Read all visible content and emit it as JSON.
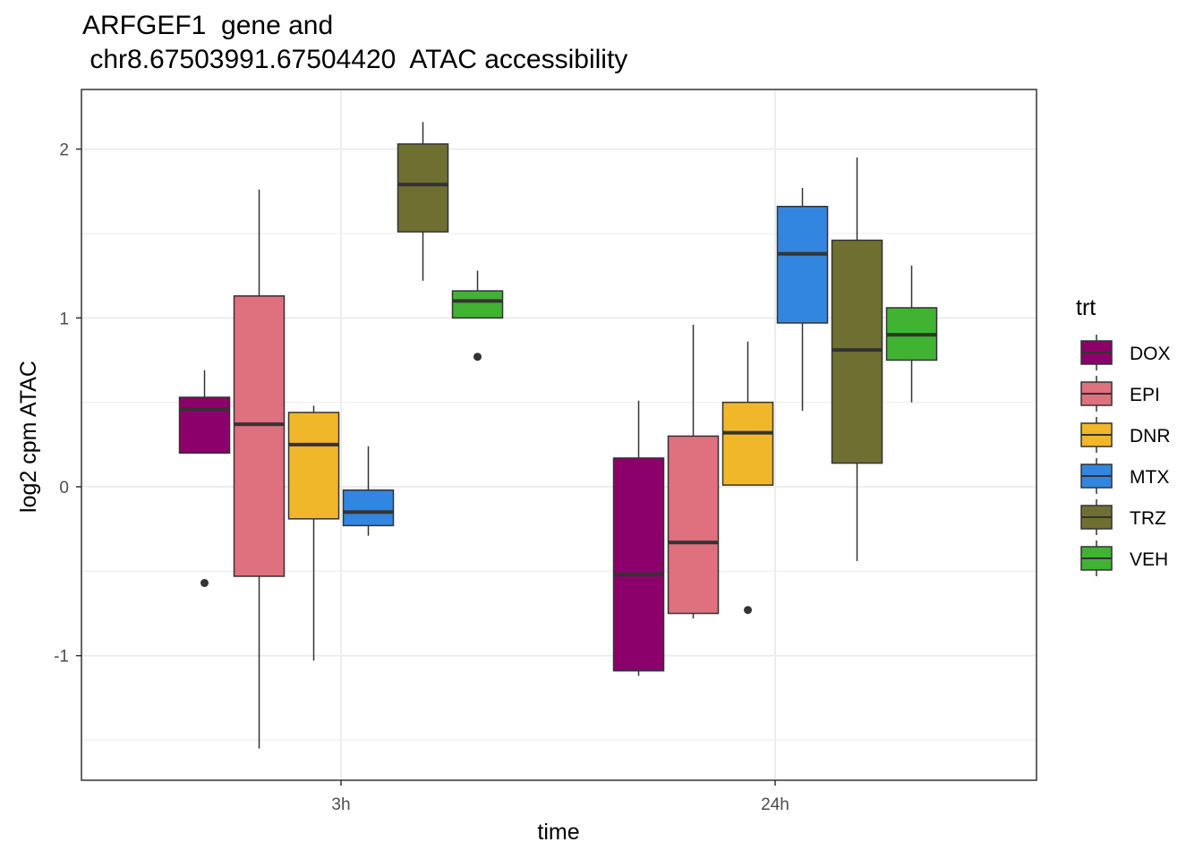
{
  "chart_data": {
    "type": "box",
    "title_line1": "ARFGEF1  gene and",
    "title_line2": " chr8.67503991.67504420  ATAC accessibility",
    "xlabel": "time",
    "ylabel": "log2 cpm ATAC",
    "categories": [
      "3h",
      "24h"
    ],
    "ylim": [
      -1.75,
      2.3
    ],
    "y_ticks": [
      -1,
      0,
      1,
      2
    ],
    "y_tick_labels": [
      "-1",
      "0",
      "1",
      "2"
    ],
    "grid": true,
    "legend": {
      "title": "trt",
      "placement": "right",
      "entries": [
        "DOX",
        "EPI",
        "DNR",
        "MTX",
        "TRZ",
        "VEH"
      ]
    },
    "series": [
      {
        "name": "DOX",
        "color": "#8B006B",
        "boxes": [
          {
            "category": "3h",
            "whisker_low": 0.2,
            "q1": 0.2,
            "median": 0.46,
            "q3": 0.53,
            "whisker_high": 0.69,
            "outliers": [
              -0.57
            ]
          },
          {
            "category": "24h",
            "whisker_low": -1.12,
            "q1": -1.09,
            "median": -0.52,
            "q3": 0.17,
            "whisker_high": 0.51,
            "outliers": []
          }
        ]
      },
      {
        "name": "EPI",
        "color": "#DF707E",
        "boxes": [
          {
            "category": "3h",
            "whisker_low": -1.55,
            "q1": -0.53,
            "median": 0.37,
            "q3": 1.13,
            "whisker_high": 1.76,
            "outliers": []
          },
          {
            "category": "24h",
            "whisker_low": -0.78,
            "q1": -0.75,
            "median": -0.33,
            "q3": 0.3,
            "whisker_high": 0.96,
            "outliers": []
          }
        ]
      },
      {
        "name": "DNR",
        "color": "#F1B72B",
        "boxes": [
          {
            "category": "3h",
            "whisker_low": -1.03,
            "q1": -0.19,
            "median": 0.25,
            "q3": 0.44,
            "whisker_high": 0.48,
            "outliers": []
          },
          {
            "category": "24h",
            "whisker_low": 0.01,
            "q1": 0.01,
            "median": 0.32,
            "q3": 0.5,
            "whisker_high": 0.86,
            "outliers": [
              -0.73
            ]
          }
        ]
      },
      {
        "name": "MTX",
        "color": "#3386E0",
        "boxes": [
          {
            "category": "3h",
            "whisker_low": -0.29,
            "q1": -0.23,
            "median": -0.15,
            "q3": -0.02,
            "whisker_high": 0.24,
            "outliers": []
          },
          {
            "category": "24h",
            "whisker_low": 0.45,
            "q1": 0.97,
            "median": 1.38,
            "q3": 1.66,
            "whisker_high": 1.77,
            "outliers": []
          }
        ]
      },
      {
        "name": "TRZ",
        "color": "#6F6F32",
        "boxes": [
          {
            "category": "3h",
            "whisker_low": 1.22,
            "q1": 1.51,
            "median": 1.79,
            "q3": 2.03,
            "whisker_high": 2.16,
            "outliers": []
          },
          {
            "category": "24h",
            "whisker_low": -0.44,
            "q1": 0.14,
            "median": 0.81,
            "q3": 1.46,
            "whisker_high": 1.95,
            "outliers": []
          }
        ]
      },
      {
        "name": "VEH",
        "color": "#41B333",
        "boxes": [
          {
            "category": "3h",
            "whisker_low": 1.0,
            "q1": 1.0,
            "median": 1.1,
            "q3": 1.16,
            "whisker_high": 1.28,
            "outliers": [
              0.77
            ]
          },
          {
            "category": "24h",
            "whisker_low": 0.5,
            "q1": 0.75,
            "median": 0.9,
            "q3": 1.06,
            "whisker_high": 1.31,
            "outliers": []
          }
        ]
      }
    ]
  }
}
